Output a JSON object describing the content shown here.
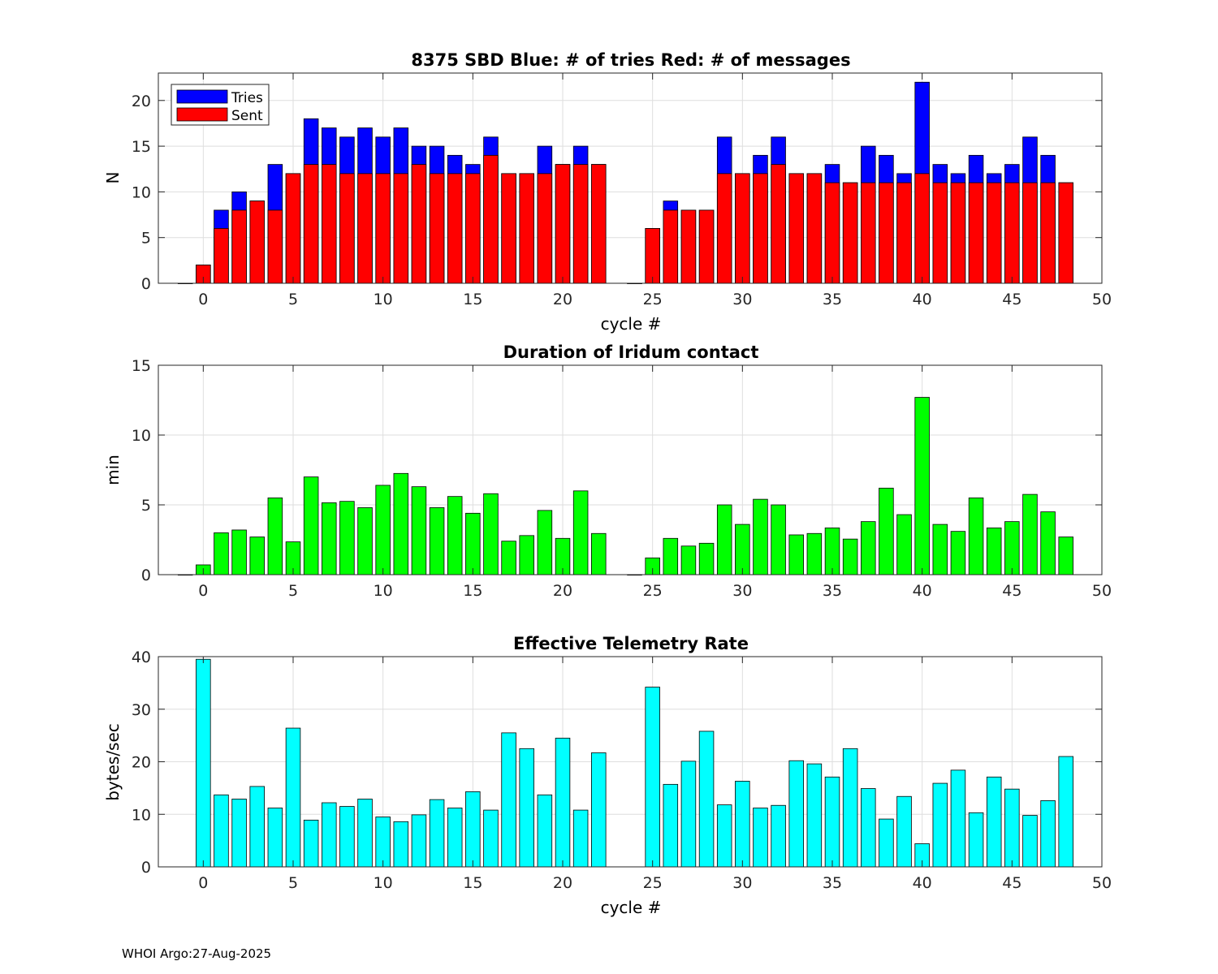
{
  "footer": "WHOI Argo:27-Aug-2025",
  "chart_data": [
    {
      "type": "bar",
      "title": "8375 SBD  Blue: # of tries   Red: # of messages",
      "xlabel": "cycle #",
      "ylabel": "N",
      "xlim": [
        -2.5,
        50
      ],
      "ylim": [
        0,
        23
      ],
      "xticks": [
        0,
        5,
        10,
        15,
        20,
        25,
        30,
        35,
        40,
        45,
        50
      ],
      "yticks": [
        0,
        5,
        10,
        15,
        20
      ],
      "grid": true,
      "legend_position": "top-left",
      "x": [
        -1,
        0,
        1,
        2,
        3,
        4,
        5,
        6,
        7,
        8,
        9,
        10,
        11,
        12,
        13,
        14,
        15,
        16,
        17,
        18,
        19,
        20,
        21,
        22,
        24,
        25,
        26,
        27,
        28,
        29,
        30,
        31,
        32,
        33,
        34,
        35,
        36,
        37,
        38,
        39,
        40,
        41,
        42,
        43,
        44,
        45,
        46,
        47,
        48
      ],
      "series": [
        {
          "name": "Tries",
          "color": "#0000ff",
          "values": [
            0,
            2,
            8,
            10,
            9,
            13,
            12,
            18,
            17,
            16,
            17,
            16,
            17,
            15,
            15,
            14,
            13,
            16,
            12,
            12,
            15,
            13,
            15,
            13,
            0,
            6,
            9,
            8,
            8,
            16,
            12,
            14,
            16,
            12,
            12,
            13,
            11,
            15,
            14,
            12,
            22,
            13,
            12,
            14,
            12,
            13,
            16,
            14,
            11
          ]
        },
        {
          "name": "Sent",
          "color": "#ff0000",
          "values": [
            0,
            2,
            6,
            8,
            9,
            8,
            12,
            13,
            13,
            12,
            12,
            12,
            12,
            13,
            12,
            12,
            12,
            14,
            12,
            12,
            12,
            13,
            13,
            13,
            0,
            6,
            8,
            8,
            8,
            12,
            12,
            12,
            13,
            12,
            12,
            11,
            11,
            11,
            11,
            11,
            12,
            11,
            11,
            11,
            11,
            11,
            11,
            11,
            11
          ]
        }
      ]
    },
    {
      "type": "bar",
      "title": "Duration of Iridum contact",
      "xlabel": "",
      "ylabel": "min",
      "xlim": [
        -2.5,
        50
      ],
      "ylim": [
        0,
        15
      ],
      "xticks": [
        0,
        5,
        10,
        15,
        20,
        25,
        30,
        35,
        40,
        45,
        50
      ],
      "yticks": [
        0,
        5,
        10,
        15
      ],
      "grid": true,
      "x": [
        -1,
        0,
        1,
        2,
        3,
        4,
        5,
        6,
        7,
        8,
        9,
        10,
        11,
        12,
        13,
        14,
        15,
        16,
        17,
        18,
        19,
        20,
        21,
        22,
        24,
        25,
        26,
        27,
        28,
        29,
        30,
        31,
        32,
        33,
        34,
        35,
        36,
        37,
        38,
        39,
        40,
        41,
        42,
        43,
        44,
        45,
        46,
        47,
        48
      ],
      "series": [
        {
          "name": "Duration",
          "color": "#00ff00",
          "values": [
            0,
            0.7,
            3.0,
            3.2,
            2.7,
            5.5,
            2.35,
            7.0,
            5.15,
            5.25,
            4.8,
            6.4,
            7.25,
            6.3,
            4.8,
            5.6,
            4.4,
            5.8,
            2.4,
            2.8,
            4.6,
            2.6,
            6.0,
            2.95,
            0,
            1.2,
            2.6,
            2.05,
            2.25,
            5.0,
            3.6,
            5.4,
            5.0,
            2.85,
            2.95,
            3.35,
            2.55,
            3.8,
            6.2,
            4.3,
            12.7,
            3.6,
            3.1,
            5.5,
            3.35,
            3.8,
            5.75,
            4.5,
            2.7
          ]
        }
      ]
    },
    {
      "type": "bar",
      "title": "Effective Telemetry Rate",
      "xlabel": "cycle #",
      "ylabel": "bytes/sec",
      "xlim": [
        -2.5,
        50
      ],
      "ylim": [
        0,
        40
      ],
      "xticks": [
        0,
        5,
        10,
        15,
        20,
        25,
        30,
        35,
        40,
        45,
        50
      ],
      "yticks": [
        0,
        10,
        20,
        30,
        40
      ],
      "grid": true,
      "x": [
        0,
        1,
        2,
        3,
        4,
        5,
        6,
        7,
        8,
        9,
        10,
        11,
        12,
        13,
        14,
        15,
        16,
        17,
        18,
        19,
        20,
        21,
        22,
        25,
        26,
        27,
        28,
        29,
        30,
        31,
        32,
        33,
        34,
        35,
        36,
        37,
        38,
        39,
        40,
        41,
        42,
        43,
        44,
        45,
        46,
        47,
        48
      ],
      "series": [
        {
          "name": "Rate",
          "color": "#00ffff",
          "values": [
            39.5,
            13.7,
            12.9,
            15.3,
            11.2,
            26.4,
            8.9,
            12.2,
            11.5,
            12.9,
            9.5,
            8.6,
            9.9,
            12.8,
            11.2,
            14.3,
            10.8,
            25.5,
            22.5,
            13.7,
            24.5,
            10.8,
            21.7,
            34.2,
            15.7,
            20.1,
            25.8,
            11.8,
            16.3,
            11.2,
            11.7,
            20.2,
            19.6,
            17.1,
            22.5,
            14.9,
            9.1,
            13.4,
            4.4,
            15.9,
            18.4,
            10.3,
            17.1,
            14.8,
            9.8,
            12.6,
            21.0
          ]
        }
      ]
    }
  ],
  "legend": {
    "tries_label": "Tries",
    "sent_label": "Sent"
  }
}
